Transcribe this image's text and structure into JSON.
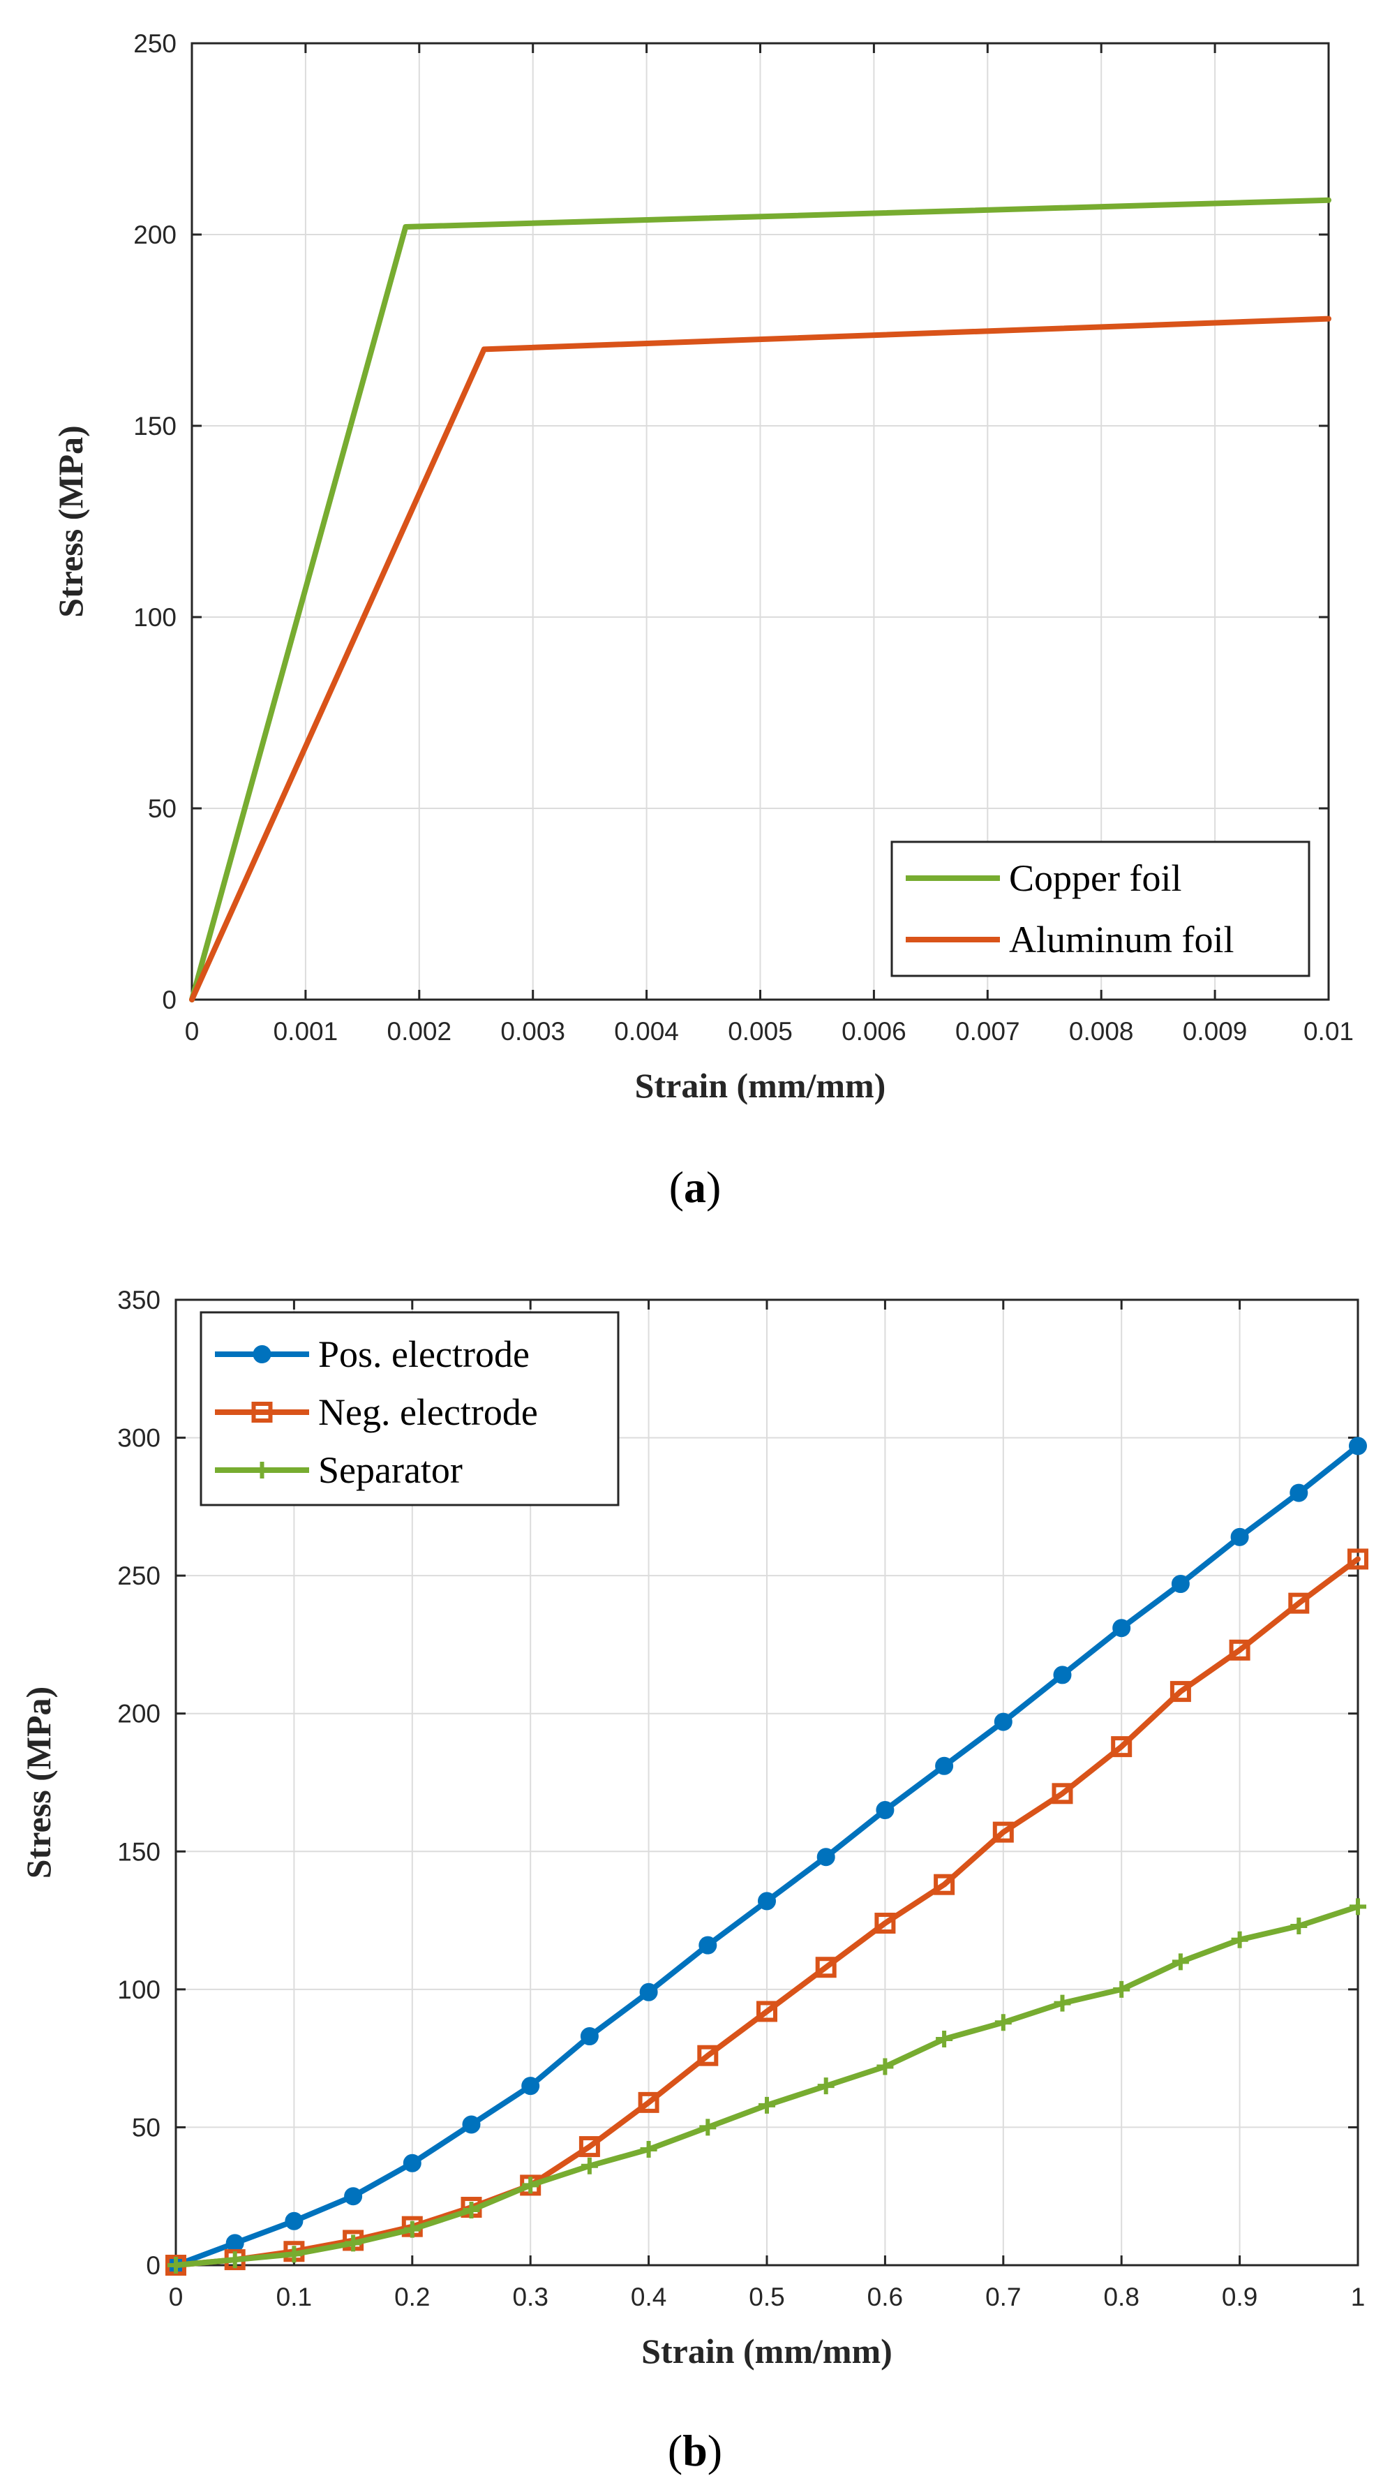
{
  "chart_data": [
    {
      "type": "line",
      "caption": "a",
      "title": "",
      "xlabel": "Strain (mm/mm)",
      "ylabel": "Stress (MPa)",
      "xlim": [
        0,
        0.01
      ],
      "ylim": [
        0,
        250
      ],
      "xticks": [
        "0",
        "0.001",
        "0.002",
        "0.003",
        "0.004",
        "0.005",
        "0.006",
        "0.007",
        "0.008",
        "0.009",
        "0.01"
      ],
      "yticks": [
        "0",
        "50",
        "100",
        "150",
        "200",
        "250"
      ],
      "grid": true,
      "legend_position": "bottom-right",
      "series": [
        {
          "name": "Copper foil",
          "color": "#77ac30",
          "marker": "none",
          "x": [
            0,
            0.00188,
            0.01
          ],
          "y": [
            0,
            202,
            209
          ]
        },
        {
          "name": "Aluminum foil",
          "color": "#d95319",
          "marker": "none",
          "x": [
            0,
            0.00257,
            0.01
          ],
          "y": [
            0,
            170,
            178
          ]
        }
      ]
    },
    {
      "type": "line",
      "caption": "b",
      "title": "",
      "xlabel": "Strain (mm/mm)",
      "ylabel": "Stress (MPa)",
      "xlim": [
        0,
        1
      ],
      "ylim": [
        0,
        350
      ],
      "xticks": [
        "0",
        "0.1",
        "0.2",
        "0.3",
        "0.4",
        "0.5",
        "0.6",
        "0.7",
        "0.8",
        "0.9",
        "1"
      ],
      "yticks": [
        "0",
        "50",
        "100",
        "150",
        "200",
        "250",
        "300",
        "350"
      ],
      "grid": true,
      "legend_position": "top-left",
      "series": [
        {
          "name": "Pos. electrode",
          "color": "#0072bd",
          "marker": "circle",
          "x": [
            0,
            0.05,
            0.1,
            0.15,
            0.2,
            0.25,
            0.3,
            0.35,
            0.4,
            0.45,
            0.5,
            0.55,
            0.6,
            0.65,
            0.7,
            0.75,
            0.8,
            0.85,
            0.9,
            0.95,
            1
          ],
          "y": [
            0,
            8,
            16,
            25,
            37,
            51,
            65,
            83,
            99,
            116,
            132,
            148,
            165,
            181,
            197,
            214,
            231,
            247,
            264,
            280,
            297
          ]
        },
        {
          "name": "Neg. electrode",
          "color": "#d95319",
          "marker": "square",
          "x": [
            0,
            0.05,
            0.1,
            0.15,
            0.2,
            0.25,
            0.3,
            0.35,
            0.4,
            0.45,
            0.5,
            0.55,
            0.6,
            0.65,
            0.7,
            0.75,
            0.8,
            0.85,
            0.9,
            0.95,
            1
          ],
          "y": [
            0,
            2,
            5,
            9,
            14,
            21,
            29,
            43,
            59,
            76,
            92,
            108,
            124,
            138,
            157,
            171,
            188,
            208,
            223,
            240,
            256
          ]
        },
        {
          "name": "Separator",
          "color": "#77ac30",
          "marker": "plus",
          "x": [
            0,
            0.05,
            0.1,
            0.15,
            0.2,
            0.25,
            0.3,
            0.35,
            0.4,
            0.45,
            0.5,
            0.55,
            0.6,
            0.65,
            0.7,
            0.75,
            0.8,
            0.85,
            0.9,
            0.95,
            1
          ],
          "y": [
            0,
            2,
            4,
            8,
            13,
            20,
            29,
            36,
            42,
            50,
            58,
            65,
            72,
            82,
            88,
            95,
            100,
            110,
            118,
            123,
            130
          ]
        }
      ]
    }
  ]
}
